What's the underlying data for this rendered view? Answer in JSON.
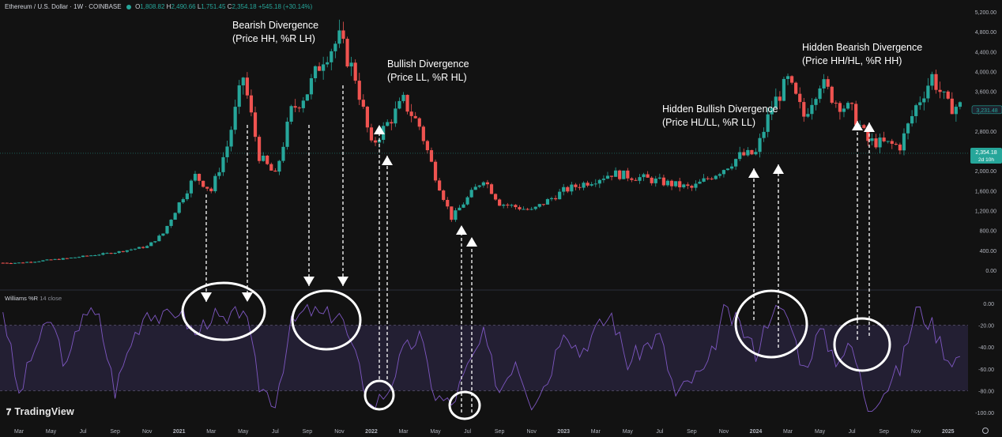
{
  "header": {
    "symbol": "Ethereum / U.S. Dollar · 1W · COINBASE",
    "o_label": "O",
    "o_value": "1,808.82",
    "h_label": "H",
    "h_value": "2,490.66",
    "l_label": "L",
    "l_value": "1,751.45",
    "c_label": "C",
    "c_value": "2,354.18",
    "change": "+545.18 (+30.14%)",
    "status_color": "#26a69a"
  },
  "indicator": {
    "name": "Williams %R",
    "params": "14 close"
  },
  "branding": {
    "name": "TradingView"
  },
  "price_axis": {
    "ticks": [
      "5,200.00",
      "4,800.00",
      "4,400.00",
      "4,000.00",
      "3,600.00",
      "3,200.00",
      "2,800.00",
      "2,400.00",
      "2,000.00",
      "1,600.00",
      "1,200.00",
      "800.00",
      "400.00",
      "0.00"
    ],
    "current_price": "2,354.18",
    "countdown": "2d 10h",
    "ref_price": "3,231.48"
  },
  "wr_axis": {
    "ticks": [
      "0.00",
      "-20.00",
      "-40.00",
      "-60.00",
      "-80.00",
      "-100.00"
    ]
  },
  "time_axis": [
    "Mar",
    "May",
    "Jul",
    "Sep",
    "Nov",
    "2021",
    "Mar",
    "May",
    "Jul",
    "Sep",
    "Nov",
    "2022",
    "Mar",
    "May",
    "Jul",
    "Sep",
    "Nov",
    "2023",
    "Mar",
    "May",
    "Jul",
    "Sep",
    "Nov",
    "2024",
    "Mar",
    "May",
    "Jul",
    "Sep",
    "Nov",
    "2025"
  ],
  "colors": {
    "up": "#26a69a",
    "down": "#ef5350",
    "wr_line": "#7e57c2",
    "band": "#231f33",
    "background": "#121212"
  },
  "annotations": [
    {
      "title": "Bearish Divergence",
      "detail": "(Price HH, %R LH)"
    },
    {
      "title": "Bullish Divergence",
      "detail": "(Price LL, %R HL)"
    },
    {
      "title": "Hidden Bullish Divergence",
      "detail": "(Price HL/LL, %R LL)"
    },
    {
      "title": "Hidden Bearish Divergence",
      "detail": "(Price HH/HL, %R HH)"
    }
  ],
  "chart_data": [
    {
      "type": "candlestick",
      "title": "Ethereum / U.S. Dollar · 1W · COINBASE",
      "y_range": [
        0,
        5200
      ],
      "x_range": [
        "2020-02",
        "2025-01"
      ],
      "anchors": [
        {
          "date": "2020-03",
          "price": 150
        },
        {
          "date": "2020-06",
          "price": 240
        },
        {
          "date": "2020-09",
          "price": 360
        },
        {
          "date": "2020-11",
          "price": 480
        },
        {
          "date": "2020-12",
          "price": 740
        },
        {
          "date": "2021-01",
          "price": 1350
        },
        {
          "date": "2021-02",
          "price": 1900
        },
        {
          "date": "2021-03",
          "price": 1600
        },
        {
          "date": "2021-04",
          "price": 2500
        },
        {
          "date": "2021-05",
          "price": 3900
        },
        {
          "date": "2021-06",
          "price": 2300
        },
        {
          "date": "2021-07",
          "price": 1900
        },
        {
          "date": "2021-08",
          "price": 3200
        },
        {
          "date": "2021-09",
          "price": 3600
        },
        {
          "date": "2021-10",
          "price": 4300
        },
        {
          "date": "2021-11",
          "price": 4650
        },
        {
          "date": "2021-12",
          "price": 3900
        },
        {
          "date": "2022-01",
          "price": 2500
        },
        {
          "date": "2022-03",
          "price": 3400
        },
        {
          "date": "2022-04",
          "price": 2900
        },
        {
          "date": "2022-05",
          "price": 1900
        },
        {
          "date": "2022-06",
          "price": 1050
        },
        {
          "date": "2022-08",
          "price": 1850
        },
        {
          "date": "2022-09",
          "price": 1350
        },
        {
          "date": "2022-11",
          "price": 1200
        },
        {
          "date": "2023-01",
          "price": 1600
        },
        {
          "date": "2023-04",
          "price": 1950
        },
        {
          "date": "2023-06",
          "price": 1850
        },
        {
          "date": "2023-09",
          "price": 1650
        },
        {
          "date": "2023-11",
          "price": 2050
        },
        {
          "date": "2023-12",
          "price": 2300
        },
        {
          "date": "2024-01",
          "price": 2350
        },
        {
          "date": "2024-02",
          "price": 3300
        },
        {
          "date": "2024-03",
          "price": 3800
        },
        {
          "date": "2024-04",
          "price": 3100
        },
        {
          "date": "2024-05",
          "price": 3800
        },
        {
          "date": "2024-06",
          "price": 3400
        },
        {
          "date": "2024-07",
          "price": 3200
        },
        {
          "date": "2024-08",
          "price": 2600
        },
        {
          "date": "2024-10",
          "price": 2500
        },
        {
          "date": "2024-11",
          "price": 3300
        },
        {
          "date": "2024-12",
          "price": 3900
        },
        {
          "date": "2025-01",
          "price": 3300
        }
      ]
    },
    {
      "type": "line",
      "title": "Williams %R 14 close",
      "y_range": [
        -100,
        0
      ],
      "bands": [
        -20,
        -80
      ],
      "anchors": [
        {
          "date": "2020-02",
          "wr": -5
        },
        {
          "date": "2020-03",
          "wr": -85
        },
        {
          "date": "2020-04",
          "wr": -40
        },
        {
          "date": "2020-05",
          "wr": -15
        },
        {
          "date": "2020-06",
          "wr": -60
        },
        {
          "date": "2020-07",
          "wr": -5
        },
        {
          "date": "2020-08",
          "wr": -15
        },
        {
          "date": "2020-09",
          "wr": -80
        },
        {
          "date": "2020-10",
          "wr": -35
        },
        {
          "date": "2020-11",
          "wr": -5
        },
        {
          "date": "2020-12",
          "wr": -15
        },
        {
          "date": "2021-01",
          "wr": -5
        },
        {
          "date": "2021-02",
          "wr": -30
        },
        {
          "date": "2021-03",
          "wr": -10
        },
        {
          "date": "2021-04",
          "wr": -20
        },
        {
          "date": "2021-05",
          "wr": -2
        },
        {
          "date": "2021-06",
          "wr": -75
        },
        {
          "date": "2021-07",
          "wr": -90
        },
        {
          "date": "2021-08",
          "wr": -20
        },
        {
          "date": "2021-09",
          "wr": -5
        },
        {
          "date": "2021-10",
          "wr": -12
        },
        {
          "date": "2021-11",
          "wr": -8
        },
        {
          "date": "2021-12",
          "wr": -50
        },
        {
          "date": "2022-01",
          "wr": -95
        },
        {
          "date": "2022-02",
          "wr": -80
        },
        {
          "date": "2022-03",
          "wr": -45
        },
        {
          "date": "2022-04",
          "wr": -30
        },
        {
          "date": "2022-05",
          "wr": -85
        },
        {
          "date": "2022-06",
          "wr": -93
        },
        {
          "date": "2022-07",
          "wr": -60
        },
        {
          "date": "2022-08",
          "wr": -30
        },
        {
          "date": "2022-09",
          "wr": -80
        },
        {
          "date": "2022-10",
          "wr": -50
        },
        {
          "date": "2022-11",
          "wr": -90
        },
        {
          "date": "2022-12",
          "wr": -70
        },
        {
          "date": "2023-01",
          "wr": -20
        },
        {
          "date": "2023-02",
          "wr": -45
        },
        {
          "date": "2023-03",
          "wr": -25
        },
        {
          "date": "2023-04",
          "wr": -10
        },
        {
          "date": "2023-05",
          "wr": -55
        },
        {
          "date": "2023-06",
          "wr": -40
        },
        {
          "date": "2023-07",
          "wr": -30
        },
        {
          "date": "2023-08",
          "wr": -85
        },
        {
          "date": "2023-09",
          "wr": -70
        },
        {
          "date": "2023-10",
          "wr": -60
        },
        {
          "date": "2023-11",
          "wr": -8
        },
        {
          "date": "2023-12",
          "wr": -20
        },
        {
          "date": "2024-01",
          "wr": -45
        },
        {
          "date": "2024-02",
          "wr": -5
        },
        {
          "date": "2024-03",
          "wr": -12
        },
        {
          "date": "2024-04",
          "wr": -60
        },
        {
          "date": "2024-05",
          "wr": -25
        },
        {
          "date": "2024-06",
          "wr": -50
        },
        {
          "date": "2024-07",
          "wr": -40
        },
        {
          "date": "2024-08",
          "wr": -95
        },
        {
          "date": "2024-09",
          "wr": -80
        },
        {
          "date": "2024-10",
          "wr": -60
        },
        {
          "date": "2024-11",
          "wr": -5
        },
        {
          "date": "2024-12",
          "wr": -20
        },
        {
          "date": "2025-01",
          "wr": -50
        }
      ]
    }
  ]
}
